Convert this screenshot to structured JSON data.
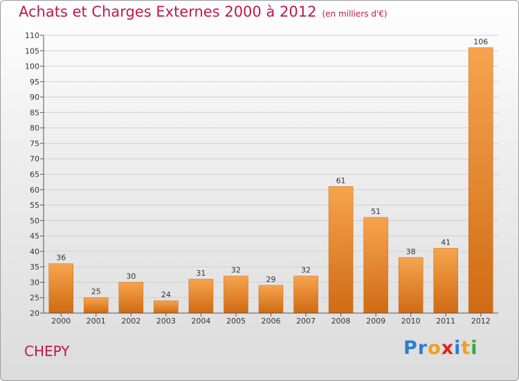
{
  "title": "Achats et Charges Externes 2000 à 2012",
  "subtitle": "(en milliers d'€)",
  "commune": "CHEPY",
  "logo": {
    "letters": [
      {
        "ch": "P",
        "color": "#2a7fd4"
      },
      {
        "ch": "r",
        "color": "#2a7fd4"
      },
      {
        "ch": "o",
        "color": "#f0a01e"
      },
      {
        "ch": "x",
        "color": "#e2231a"
      },
      {
        "ch": "i",
        "color": "#2a7fd4"
      },
      {
        "ch": "t",
        "color": "#f0a01e"
      },
      {
        "ch": "i",
        "color": "#3aa63a"
      }
    ]
  },
  "chart_data": {
    "type": "bar",
    "categories": [
      "2000",
      "2001",
      "2002",
      "2003",
      "2004",
      "2005",
      "2006",
      "2007",
      "2008",
      "2009",
      "2010",
      "2011",
      "2012"
    ],
    "values": [
      36,
      25,
      30,
      24,
      31,
      32,
      29,
      32,
      61,
      51,
      38,
      41,
      106
    ],
    "ylim": [
      20,
      110
    ],
    "ytick_step": 5,
    "grid": true,
    "bar_color_top": "#f7a44e",
    "bar_color_bottom": "#cf6b14"
  }
}
